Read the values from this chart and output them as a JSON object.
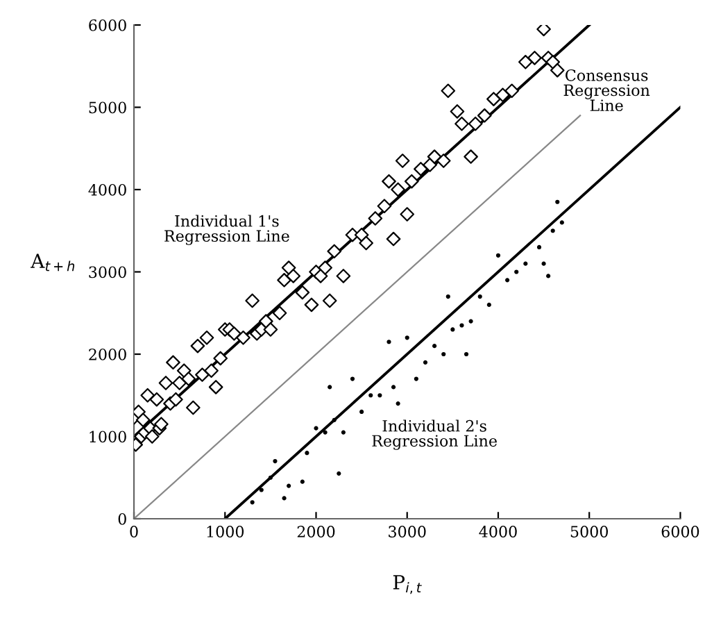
{
  "chart_data": {
    "type": "scatter",
    "xlabel": "P$_{i,t}$",
    "ylabel": "A$_{t+h}$",
    "xlim": [
      0,
      6000
    ],
    "ylim": [
      0,
      6000
    ],
    "xticks": [
      0,
      1000,
      2000,
      3000,
      4000,
      5000,
      6000
    ],
    "yticks": [
      0,
      1000,
      2000,
      3000,
      4000,
      5000,
      6000
    ],
    "grid": false,
    "legend": false,
    "series": [
      {
        "marker": "diamond",
        "color": "#000000",
        "x": [
          0,
          20,
          50,
          80,
          100,
          120,
          150,
          180,
          200,
          250,
          280,
          300,
          350,
          400,
          430,
          460,
          500,
          550,
          600,
          650,
          700,
          750,
          800,
          850,
          900,
          950,
          1000,
          1050,
          1100,
          1200,
          1300,
          1350,
          1400,
          1450,
          1500,
          1600,
          1650,
          1700,
          1750,
          1850,
          1950,
          2000,
          2050,
          2100,
          2150,
          2200,
          2300,
          2400,
          2500,
          2550,
          2650,
          2750,
          2800,
          2850,
          2900,
          2950,
          3000,
          3050,
          3150,
          3250,
          3300,
          3400,
          3450,
          3550,
          3600,
          3700,
          3750,
          3850,
          3950,
          4050,
          4150,
          4300,
          4400,
          4500,
          4550,
          4600,
          4650
        ],
        "values": [
          1230,
          900,
          1300,
          1000,
          1200,
          1050,
          1500,
          1100,
          1000,
          1450,
          1100,
          1150,
          1650,
          1400,
          1900,
          1450,
          1650,
          1800,
          1700,
          1350,
          2100,
          1750,
          2200,
          1800,
          1600,
          1950,
          2300,
          2300,
          2250,
          2200,
          2650,
          2250,
          2300,
          2400,
          2300,
          2500,
          2900,
          3050,
          2950,
          2750,
          2600,
          3000,
          2950,
          3050,
          2650,
          3250,
          2950,
          3450,
          3450,
          3350,
          3650,
          3800,
          4100,
          3400,
          4000,
          4350,
          3700,
          4100,
          4250,
          4300,
          4400,
          4350,
          5200,
          4950,
          4800,
          4400,
          4800,
          4900,
          5100,
          5150,
          5200,
          5550,
          5600,
          5950,
          5600,
          5550,
          5450
        ]
      },
      {
        "marker": "circle",
        "color": "#000000",
        "x": [
          1300,
          1400,
          1500,
          1550,
          1650,
          1700,
          1850,
          1900,
          2000,
          2100,
          2150,
          2200,
          2250,
          2300,
          2400,
          2500,
          2600,
          2700,
          2800,
          2850,
          2900,
          3000,
          3100,
          3200,
          3300,
          3400,
          3450,
          3500,
          3600,
          3650,
          3700,
          3800,
          3900,
          4000,
          4100,
          4200,
          4300,
          4450,
          4500,
          4550,
          4600,
          4650,
          4700
        ],
        "values": [
          200,
          350,
          500,
          700,
          250,
          400,
          450,
          800,
          1100,
          1050,
          1600,
          1200,
          550,
          1050,
          1700,
          1300,
          1500,
          1500,
          2150,
          1600,
          1400,
          2200,
          1700,
          1900,
          2100,
          2000,
          2700,
          2300,
          2350,
          2000,
          2400,
          2700,
          2600,
          3200,
          2900,
          3000,
          3100,
          3300,
          3100,
          2950,
          3500,
          3850,
          3600
        ]
      },
      {
        "type": "line",
        "name": "Individual 1's\nRegression Line",
        "color": "#000000",
        "x": [
          0,
          5000
        ],
        "values": [
          1000,
          6000
        ]
      },
      {
        "type": "line",
        "name": "Consensus\nRegression\nLine",
        "color": "#888888",
        "x": [
          0,
          4900
        ],
        "values": [
          0,
          4900
        ]
      },
      {
        "type": "line",
        "name": "Individual 2's\nRegression Line",
        "color": "#000000",
        "x": [
          1000,
          6000
        ],
        "values": [
          0,
          5000
        ]
      }
    ]
  }
}
